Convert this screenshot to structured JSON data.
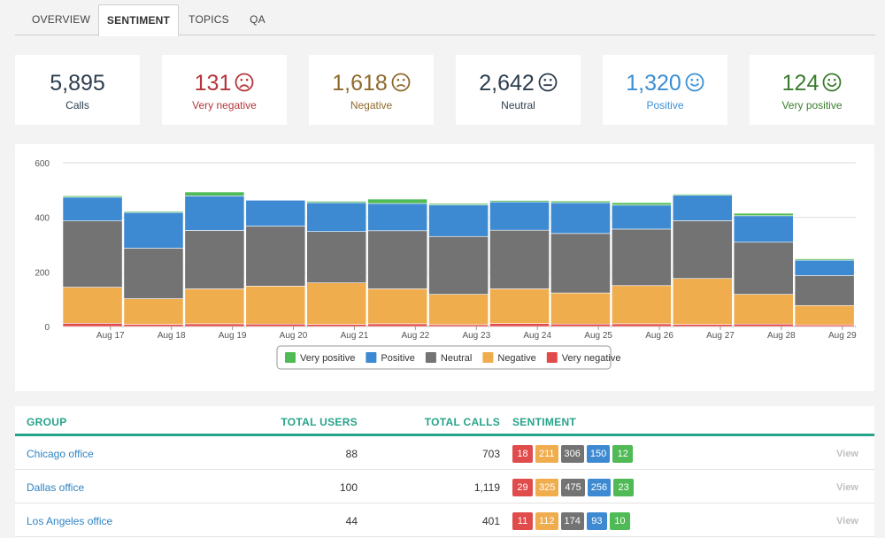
{
  "tabs": [
    {
      "label": "OVERVIEW"
    },
    {
      "label": "SENTIMENT"
    },
    {
      "label": "TOPICS"
    },
    {
      "label": "QA"
    }
  ],
  "active_tab": "SENTIMENT",
  "colors": {
    "very_negative": "#e04b4b",
    "negative": "#f0ad4e",
    "neutral": "#737373",
    "positive": "#3d8ad2",
    "very_positive": "#4fba56",
    "accent": "#26a389"
  },
  "stats": [
    {
      "value": "5,895",
      "label": "Calls",
      "face": "",
      "color": "#2d3e4f"
    },
    {
      "value": "131",
      "label": "Very negative",
      "face": "very-sad-icon",
      "color": "#b5363a"
    },
    {
      "value": "1,618",
      "label": "Negative",
      "face": "sad-icon",
      "color": "#8f6a2c"
    },
    {
      "value": "2,642",
      "label": "Neutral",
      "face": "neutral-face-icon",
      "color": "#2d3e4f"
    },
    {
      "value": "1,320",
      "label": "Positive",
      "face": "smile-icon",
      "color": "#3b8fd4"
    },
    {
      "value": "124",
      "label": "Very positive",
      "face": "big-smile-icon",
      "color": "#3a7d2e"
    }
  ],
  "chart_data": {
    "type": "bar",
    "stacked": true,
    "categories": [
      "Aug 17",
      "Aug 18",
      "Aug 19",
      "Aug 20",
      "Aug 21",
      "Aug 22",
      "Aug 23",
      "Aug 24",
      "Aug 25",
      "Aug 26",
      "Aug 27",
      "Aug 28",
      "Aug 29"
    ],
    "series": [
      {
        "name": "Very negative",
        "color": "#e04b4b",
        "values": [
          12,
          8,
          10,
          9,
          8,
          10,
          7,
          11,
          9,
          10,
          8,
          9,
          6
        ]
      },
      {
        "name": "Negative",
        "color": "#f0ad4e",
        "values": [
          132,
          94,
          128,
          139,
          152,
          128,
          111,
          127,
          114,
          140,
          168,
          109,
          71
        ]
      },
      {
        "name": "Neutral",
        "color": "#737373",
        "values": [
          243,
          185,
          214,
          220,
          188,
          213,
          212,
          215,
          218,
          207,
          212,
          191,
          110
        ]
      },
      {
        "name": "Positive",
        "color": "#3d8ad2",
        "values": [
          87,
          131,
          127,
          95,
          106,
          100,
          116,
          104,
          113,
          88,
          93,
          97,
          56
        ]
      },
      {
        "name": "Very positive",
        "color": "#4fba56",
        "values": [
          5,
          4,
          14,
          2,
          5,
          16,
          5,
          5,
          6,
          9,
          4,
          9,
          5
        ]
      }
    ],
    "legend": [
      "Very positive",
      "Positive",
      "Neutral",
      "Negative",
      "Very negative"
    ],
    "legend_position": "bottom-center",
    "y_ticks": [
      0,
      200,
      400,
      600
    ],
    "ylim": [
      0,
      600
    ],
    "title": "",
    "xlabel": "",
    "ylabel": ""
  },
  "table": {
    "headers": {
      "group": "GROUP",
      "total_users": "TOTAL USERS",
      "total_calls": "TOTAL CALLS",
      "sentiment": "SENTIMENT"
    },
    "view_label": "View",
    "rows": [
      {
        "group": "Chicago office",
        "users": "88",
        "calls": "703",
        "sentiment": [
          "18",
          "211",
          "306",
          "150",
          "12"
        ]
      },
      {
        "group": "Dallas office",
        "users": "100",
        "calls": "1,119",
        "sentiment": [
          "29",
          "325",
          "475",
          "256",
          "23"
        ]
      },
      {
        "group": "Los Angeles office",
        "users": "44",
        "calls": "401",
        "sentiment": [
          "11",
          "112",
          "174",
          "93",
          "10"
        ]
      }
    ]
  }
}
